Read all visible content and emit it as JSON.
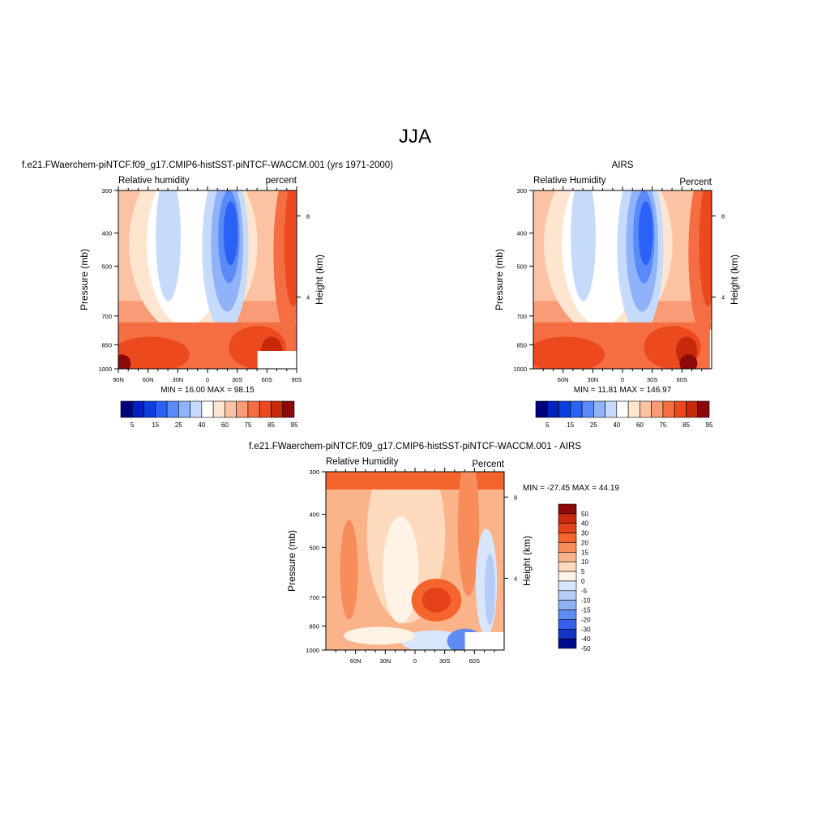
{
  "page": {
    "title": "JJA"
  },
  "chart_data": [
    {
      "type": "heatmap",
      "title": "f.e21.FWaerchem-piNTCF.f09_g17.CMIP6-histSST-piNTCF-WACCM.001 (yrs 1971-2000)",
      "left_label": "Relative humidity",
      "right_label": "percent",
      "ylabel": "Pressure (mb)",
      "y2label": "Height (km)",
      "y_ticks": [
        300,
        400,
        500,
        700,
        850,
        1000
      ],
      "y2_ticks": [
        8,
        4
      ],
      "x_ticks": [
        "90N",
        "60N",
        "30N",
        "0",
        "30S",
        "60S",
        "90S"
      ],
      "x_range": [
        90,
        -90
      ],
      "stats": "MIN =  16.00  MAX =  98.15",
      "colorbar": {
        "orientation": "horizontal",
        "levels": [
          5,
          10,
          15,
          20,
          25,
          30,
          40,
          50,
          60,
          70,
          75,
          80,
          85,
          90,
          95
        ],
        "tick_labels": [
          "5",
          "15",
          "25",
          "40",
          "60",
          "75",
          "85",
          "95"
        ]
      }
    },
    {
      "type": "heatmap",
      "title": "AIRS",
      "left_label": "Relative Humidity",
      "right_label": "Percent",
      "ylabel": "Pressure (mb)",
      "y2label": "Height (km)",
      "y_ticks": [
        300,
        400,
        500,
        700,
        850,
        1000
      ],
      "y2_ticks": [
        8,
        4
      ],
      "x_ticks": [
        "60N",
        "30N",
        "0",
        "30S",
        "60S"
      ],
      "x_range": [
        90,
        -90
      ],
      "stats": "MIN =  11.81  MAX = 146.97",
      "colorbar": {
        "orientation": "horizontal",
        "levels": [
          5,
          10,
          15,
          20,
          25,
          30,
          40,
          50,
          60,
          70,
          75,
          80,
          85,
          90,
          95
        ],
        "tick_labels": [
          "5",
          "15",
          "25",
          "40",
          "60",
          "75",
          "85",
          "95"
        ]
      }
    },
    {
      "type": "heatmap",
      "title": "f.e21.FWaerchem-piNTCF.f09_g17.CMIP6-histSST-piNTCF-WACCM.001 - AIRS",
      "left_label": "Relative Humidity",
      "right_label": "Percent",
      "ylabel": "Pressure (mb)",
      "y2label": "Height (km)",
      "y_ticks": [
        300,
        400,
        500,
        700,
        850,
        1000
      ],
      "y2_ticks": [
        8,
        4
      ],
      "x_ticks": [
        "60N",
        "30N",
        "0",
        "30S",
        "60S"
      ],
      "x_range": [
        90,
        -90
      ],
      "stats": "MIN = -27.45  MAX =  44.19",
      "colorbar": {
        "orientation": "vertical",
        "levels": [
          50,
          40,
          30,
          20,
          15,
          10,
          5,
          0,
          -5,
          -10,
          -15,
          -20,
          -30,
          -40,
          -50
        ],
        "tick_labels": [
          "50",
          "40",
          "30",
          "20",
          "15",
          "10",
          "5",
          "0",
          "-5",
          "-10",
          "-15",
          "-20",
          "-30",
          "-40",
          "-50"
        ]
      }
    }
  ],
  "colors": {
    "seq": [
      "#00007f",
      "#0020c0",
      "#0d3fe0",
      "#2a62f6",
      "#5a8af8",
      "#90b2f8",
      "#c6dafb",
      "#ffffff",
      "#fde5d0",
      "#fbc3a4",
      "#f89b76",
      "#f46d43",
      "#ec4a1e",
      "#c62a0a",
      "#8c0a0a"
    ],
    "diff": [
      "#8c0a0a",
      "#c62a0a",
      "#e54219",
      "#f4652e",
      "#f88d5c",
      "#fbb38a",
      "#fdd9bd",
      "#fff3e6",
      "#d8e6fb",
      "#b5ccf6",
      "#8fb0f4",
      "#5f8cf2",
      "#3460eb",
      "#1534c4",
      "#000a8c"
    ]
  }
}
